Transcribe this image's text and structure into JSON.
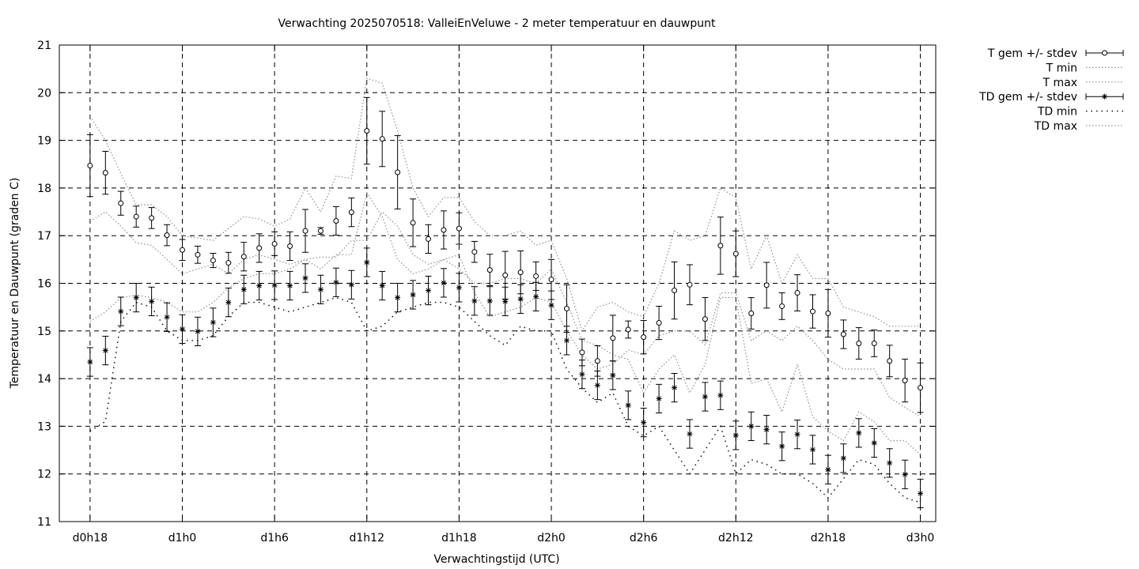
{
  "chart_data": {
    "type": "line",
    "title": "Verwachting 2025070518: ValleiEnVeluwe - 2 meter temperatuur en dauwpunt",
    "xlabel": "Verwachtingstijd (UTC)",
    "ylabel": "Temperatuur en Dauwpunt (graden C)",
    "ylim": [
      11,
      21
    ],
    "yticks": [
      11,
      12,
      13,
      14,
      15,
      16,
      17,
      18,
      19,
      20,
      21
    ],
    "xlim": [
      -2,
      55
    ],
    "xticks": [
      {
        "x": 0,
        "label": "d0h18"
      },
      {
        "x": 6,
        "label": "d1h0"
      },
      {
        "x": 12,
        "label": "d1h6"
      },
      {
        "x": 18,
        "label": "d1h12"
      },
      {
        "x": 24,
        "label": "d1h18"
      },
      {
        "x": 30,
        "label": "d2h0"
      },
      {
        "x": 36,
        "label": "d2h6"
      },
      {
        "x": 42,
        "label": "d2h12"
      },
      {
        "x": 48,
        "label": "d2h18"
      },
      {
        "x": 54,
        "label": "d3h0"
      }
    ],
    "grid": true,
    "legend_position": "outside-top-right",
    "x": [
      0,
      1,
      2,
      3,
      4,
      5,
      6,
      7,
      8,
      9,
      10,
      11,
      12,
      13,
      14,
      15,
      16,
      17,
      18,
      19,
      20,
      21,
      22,
      23,
      24,
      25,
      26,
      27,
      28,
      29,
      30,
      31,
      32,
      33,
      34,
      35,
      36,
      37,
      38,
      39,
      40,
      41,
      42,
      43,
      44,
      45,
      46,
      47,
      48,
      49,
      50,
      51,
      52,
      53,
      54
    ],
    "series": [
      {
        "name": "T gem +/- stdev",
        "style": "errorbars-circle",
        "values": [
          18.47,
          18.32,
          17.68,
          17.4,
          17.37,
          17.01,
          16.7,
          16.6,
          16.48,
          16.43,
          16.56,
          16.74,
          16.83,
          16.78,
          17.1,
          17.1,
          17.31,
          17.49,
          19.2,
          19.03,
          18.33,
          17.27,
          16.93,
          17.12,
          17.15,
          16.66,
          16.28,
          16.17,
          16.23,
          16.15,
          16.08,
          15.47,
          14.55,
          14.37,
          14.85,
          15.03,
          14.87,
          15.17,
          15.85,
          15.97,
          15.25,
          16.79,
          16.62,
          15.37,
          15.96,
          15.52,
          15.8,
          15.41,
          15.37,
          14.93,
          14.74,
          14.74,
          14.37,
          13.96,
          13.81
        ],
        "stdev": [
          0.65,
          0.45,
          0.25,
          0.22,
          0.22,
          0.22,
          0.22,
          0.18,
          0.15,
          0.22,
          0.3,
          0.3,
          0.25,
          0.3,
          0.45,
          0.07,
          0.3,
          0.3,
          0.7,
          0.58,
          0.77,
          0.5,
          0.3,
          0.4,
          0.33,
          0.22,
          0.33,
          0.5,
          0.45,
          0.3,
          0.42,
          0.5,
          0.28,
          0.32,
          0.48,
          0.18,
          0.35,
          0.35,
          0.6,
          0.42,
          0.45,
          0.6,
          0.48,
          0.33,
          0.48,
          0.28,
          0.38,
          0.35,
          0.5,
          0.3,
          0.33,
          0.28,
          0.33,
          0.45,
          0.52
        ]
      },
      {
        "name": "T min",
        "style": "dotted",
        "values": [
          17.3,
          17.5,
          17.2,
          16.85,
          16.8,
          16.5,
          16.2,
          16.3,
          16.4,
          16.2,
          16.5,
          16.6,
          16.5,
          16.4,
          16.5,
          16.55,
          16.55,
          16.9,
          16.9,
          17.5,
          17.2,
          16.6,
          16.4,
          16.5,
          16.6,
          15.8,
          15.3,
          15.4,
          15.5,
          15.7,
          15.6,
          15.0,
          14.5,
          14.2,
          14.3,
          14.6,
          14.5,
          14.9,
          15.0,
          15.0,
          14.7,
          15.8,
          15.8,
          14.8,
          15.0,
          14.8,
          15.1,
          14.8,
          14.4,
          14.2,
          14.2,
          14.2,
          13.6,
          13.4,
          13.2
        ]
      },
      {
        "name": "T max",
        "style": "dotted",
        "values": [
          19.5,
          19.0,
          18.3,
          17.65,
          17.65,
          17.4,
          17.0,
          16.95,
          16.9,
          17.15,
          17.4,
          17.35,
          17.2,
          17.35,
          18.0,
          17.5,
          18.25,
          18.2,
          20.3,
          20.2,
          19.2,
          18.0,
          17.4,
          17.8,
          17.8,
          17.3,
          17.0,
          17.0,
          17.1,
          16.8,
          16.9,
          16.1,
          15.0,
          15.5,
          15.6,
          15.4,
          15.3,
          16.0,
          17.1,
          16.9,
          17.0,
          18.0,
          17.8,
          16.3,
          17.0,
          16.0,
          16.6,
          16.1,
          16.1,
          15.5,
          15.4,
          15.3,
          15.1,
          15.1,
          15.1
        ]
      },
      {
        "name": "TD gem +/- stdev",
        "style": "errorbars-star",
        "values": [
          14.35,
          14.59,
          15.41,
          15.7,
          15.62,
          15.29,
          15.04,
          14.99,
          15.18,
          15.6,
          15.87,
          15.95,
          15.96,
          15.95,
          16.11,
          15.87,
          16.02,
          15.97,
          16.44,
          15.95,
          15.7,
          15.76,
          15.85,
          16.01,
          15.91,
          15.63,
          15.63,
          15.62,
          15.67,
          15.72,
          15.54,
          14.8,
          14.09,
          13.86,
          14.07,
          13.44,
          13.08,
          13.58,
          13.81,
          12.84,
          13.62,
          13.65,
          12.81,
          13.0,
          12.93,
          12.58,
          12.83,
          12.51,
          12.09,
          12.33,
          12.86,
          12.65,
          12.23,
          11.99,
          11.59
        ]
      },
      {
        "name": "TD min",
        "style": "sparse-dotted",
        "values": [
          12.9,
          13.1,
          15.2,
          15.6,
          15.5,
          15.0,
          14.8,
          14.8,
          14.9,
          15.3,
          15.6,
          15.6,
          15.5,
          15.4,
          15.5,
          15.6,
          15.7,
          15.6,
          15.0,
          15.1,
          15.4,
          15.5,
          15.6,
          15.6,
          15.5,
          15.2,
          14.9,
          14.7,
          15.1,
          15.0,
          15.0,
          14.2,
          13.8,
          13.5,
          13.7,
          13.0,
          12.8,
          13.0,
          12.5,
          12.0,
          12.5,
          13.0,
          12.0,
          12.3,
          12.2,
          12.0,
          12.0,
          11.8,
          11.5,
          11.9,
          12.3,
          12.2,
          11.8,
          11.5,
          11.4
        ]
      },
      {
        "name": "TD max",
        "style": "dotted",
        "values": [
          15.2,
          15.4,
          15.7,
          15.75,
          15.7,
          15.6,
          15.4,
          15.4,
          15.6,
          15.9,
          16.1,
          16.2,
          16.2,
          16.3,
          16.5,
          16.3,
          16.6,
          16.6,
          17.9,
          17.4,
          16.5,
          16.2,
          16.3,
          16.5,
          16.3,
          16.0,
          16.0,
          16.1,
          16.1,
          16.0,
          16.3,
          15.6,
          14.8,
          14.7,
          14.5,
          14.4,
          13.7,
          14.2,
          14.5,
          13.7,
          14.3,
          15.7,
          15.7,
          13.9,
          14.0,
          13.3,
          14.3,
          13.2,
          12.9,
          12.7,
          13.3,
          13.1,
          12.7,
          12.7,
          12.4
        ]
      }
    ]
  }
}
